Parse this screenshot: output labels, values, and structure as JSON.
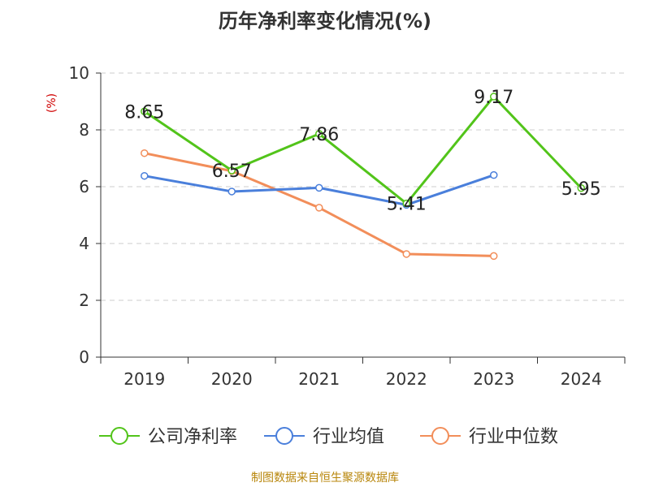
{
  "chart_data": {
    "type": "line",
    "title": "历年净利率变化情况(%)",
    "ylabel": "(%)",
    "xlabel": "",
    "ylim": [
      0,
      10
    ],
    "yticks": [
      "0",
      "2",
      "4",
      "6",
      "8",
      "10"
    ],
    "categories": [
      "2019",
      "2020",
      "2021",
      "2022",
      "2023",
      "2024"
    ],
    "grid": true,
    "legend_position": "bottom",
    "series": [
      {
        "name": "公司净利率",
        "color": "#52c41a",
        "values": [
          8.65,
          6.57,
          7.86,
          5.41,
          9.17,
          5.95
        ],
        "labels": [
          "8.65",
          "6.57",
          "7.86",
          "5.41",
          "9.17",
          "5.95"
        ]
      },
      {
        "name": "行业均值",
        "color": "#4a7fdb",
        "values": [
          6.38,
          5.83,
          5.96,
          5.36,
          6.41,
          null
        ]
      },
      {
        "name": "行业中位数",
        "color": "#f28e5a",
        "values": [
          7.18,
          6.55,
          5.26,
          3.63,
          3.56,
          null
        ]
      }
    ]
  },
  "source_note": "制图数据来自恒生聚源数据库"
}
